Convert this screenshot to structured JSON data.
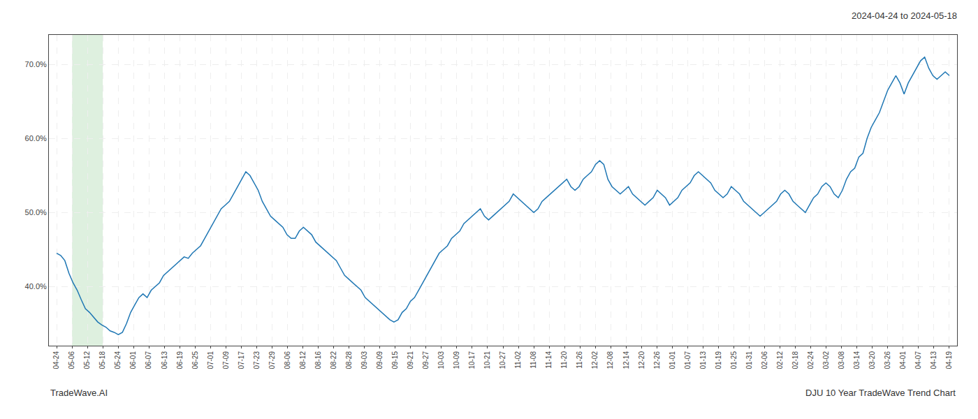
{
  "chart_data": {
    "type": "line",
    "title": "2024-04-24 to 2024-05-18",
    "annotations": [
      "TradeWave.AI",
      "DJU 10 Year TradeWave Trend Chart"
    ],
    "color": "#1f77b4",
    "grid": true,
    "highlight": {
      "x": [
        1,
        3
      ],
      "color": "#c8e6c9"
    },
    "xlim": [
      -0.5,
      58.5
    ],
    "xticks": [
      {
        "value": 0,
        "label": "04-24"
      },
      {
        "value": 1,
        "label": "05-06"
      },
      {
        "value": 2,
        "label": "05-12"
      },
      {
        "value": 3,
        "label": "05-18"
      },
      {
        "value": 4,
        "label": "05-24"
      },
      {
        "value": 5,
        "label": "06-01"
      },
      {
        "value": 6,
        "label": "06-07"
      },
      {
        "value": 7,
        "label": "06-13"
      },
      {
        "value": 8,
        "label": "06-19"
      },
      {
        "value": 9,
        "label": "06-25"
      },
      {
        "value": 10,
        "label": "07-01"
      },
      {
        "value": 11,
        "label": "07-09"
      },
      {
        "value": 12,
        "label": "07-17"
      },
      {
        "value": 13,
        "label": "07-23"
      },
      {
        "value": 14,
        "label": "07-29"
      },
      {
        "value": 15,
        "label": "08-06"
      },
      {
        "value": 16,
        "label": "08-12"
      },
      {
        "value": 17,
        "label": "08-16"
      },
      {
        "value": 18,
        "label": "08-22"
      },
      {
        "value": 19,
        "label": "08-28"
      },
      {
        "value": 20,
        "label": "09-03"
      },
      {
        "value": 21,
        "label": "09-09"
      },
      {
        "value": 22,
        "label": "09-15"
      },
      {
        "value": 23,
        "label": "09-21"
      },
      {
        "value": 24,
        "label": "09-27"
      },
      {
        "value": 25,
        "label": "10-03"
      },
      {
        "value": 26,
        "label": "10-09"
      },
      {
        "value": 27,
        "label": "10-17"
      },
      {
        "value": 28,
        "label": "10-21"
      },
      {
        "value": 29,
        "label": "10-27"
      },
      {
        "value": 30,
        "label": "11-02"
      },
      {
        "value": 31,
        "label": "11-08"
      },
      {
        "value": 32,
        "label": "11-14"
      },
      {
        "value": 33,
        "label": "11-20"
      },
      {
        "value": 34,
        "label": "11-26"
      },
      {
        "value": 35,
        "label": "12-02"
      },
      {
        "value": 36,
        "label": "12-08"
      },
      {
        "value": 37,
        "label": "12-14"
      },
      {
        "value": 38,
        "label": "12-20"
      },
      {
        "value": 39,
        "label": "12-26"
      },
      {
        "value": 40,
        "label": "01-01"
      },
      {
        "value": 41,
        "label": "01-07"
      },
      {
        "value": 42,
        "label": "01-13"
      },
      {
        "value": 43,
        "label": "01-19"
      },
      {
        "value": 44,
        "label": "01-25"
      },
      {
        "value": 45,
        "label": "01-31"
      },
      {
        "value": 46,
        "label": "02-06"
      },
      {
        "value": 47,
        "label": "02-12"
      },
      {
        "value": 48,
        "label": "02-18"
      },
      {
        "value": 49,
        "label": "02-24"
      },
      {
        "value": 50,
        "label": "03-02"
      },
      {
        "value": 51,
        "label": "03-08"
      },
      {
        "value": 52,
        "label": "03-14"
      },
      {
        "value": 53,
        "label": "03-20"
      },
      {
        "value": 54,
        "label": "03-26"
      },
      {
        "value": 55,
        "label": "04-01"
      },
      {
        "value": 56,
        "label": "04-07"
      },
      {
        "value": 57,
        "label": "04-13"
      },
      {
        "value": 58,
        "label": "04-19"
      }
    ],
    "ylim": [
      32,
      74
    ],
    "yticks": [
      {
        "value": 40.0,
        "label": "40.0%"
      },
      {
        "value": 50.0,
        "label": "50.0%"
      },
      {
        "value": 60.0,
        "label": "60.0%"
      },
      {
        "value": 70.0,
        "label": "70.0%"
      }
    ],
    "x": [
      0,
      0.2673,
      0.5346,
      0.8018,
      1.0691,
      1.3364,
      1.6037,
      1.871,
      2.1382,
      2.4055,
      2.6728,
      2.9401,
      3.2074,
      3.4747,
      3.7419,
      4.0092,
      4.2765,
      4.5438,
      4.8111,
      5.0783,
      5.3456,
      5.6129,
      5.8802,
      6.1475,
      6.4147,
      6.682,
      6.9493,
      7.2166,
      7.4839,
      7.7512,
      8.0184,
      8.2857,
      8.553,
      8.8203,
      9.0876,
      9.3548,
      9.6221,
      9.8894,
      10.1567,
      10.424,
      10.6912,
      10.9585,
      11.2258,
      11.4931,
      11.7604,
      12.0276,
      12.2949,
      12.5622,
      12.8295,
      13.0968,
      13.3641,
      13.6313,
      13.8986,
      14.1659,
      14.4332,
      14.7005,
      14.9677,
      15.235,
      15.5023,
      15.7696,
      16.0369,
      16.3041,
      16.5714,
      16.8387,
      17.106,
      17.3733,
      17.6406,
      17.9078,
      18.1751,
      18.4424,
      18.7097,
      18.977,
      19.2442,
      19.5115,
      19.7788,
      20.0461,
      20.3134,
      20.5806,
      20.8479,
      21.1152,
      21.3825,
      21.6498,
      21.9171,
      22.1843,
      22.4516,
      22.7189,
      22.9862,
      23.2535,
      23.5207,
      23.788,
      24.0553,
      24.3226,
      24.5899,
      24.8571,
      25.1244,
      25.3917,
      25.659,
      25.9263,
      26.1935,
      26.4608,
      26.7281,
      26.9954,
      27.2627,
      27.53,
      27.7972,
      28.0645,
      28.3318,
      28.5991,
      28.8664,
      29.1336,
      29.4009,
      29.6682,
      29.9355,
      30.2028,
      30.47,
      30.7373,
      31.0046,
      31.2719,
      31.5392,
      31.8065,
      32.0737,
      32.341,
      32.6083,
      32.8756,
      33.1429,
      33.4101,
      33.6774,
      33.9447,
      34.212,
      34.4793,
      34.7465,
      35.0138,
      35.2811,
      35.5484,
      35.8157,
      36.0829,
      36.3502,
      36.6175,
      36.8848,
      37.1521,
      37.4194,
      37.6866,
      37.9539,
      38.2212,
      38.4885,
      38.7558,
      39.023,
      39.2903,
      39.5576,
      39.8249,
      40.0922,
      40.3594,
      40.6267,
      40.894,
      41.1613,
      41.4286,
      41.6959,
      41.9631,
      42.2304,
      42.4977,
      42.765,
      43.0323,
      43.2995,
      43.5668,
      43.8341,
      44.1014,
      44.3687,
      44.6359,
      44.9032,
      45.1705,
      45.4378,
      45.7051,
      45.9724,
      46.2396,
      46.5069,
      46.7742,
      47.0415,
      47.3088,
      47.576,
      47.8433,
      48.1106,
      48.3779,
      48.6452,
      48.9124,
      49.1797,
      49.447,
      49.7143,
      49.9816,
      50.2488,
      50.5161,
      50.7834,
      51.0507,
      51.318,
      51.5853,
      51.8525,
      52.1198,
      52.3871,
      52.6544,
      52.9217,
      53.1889,
      53.4562,
      53.7235,
      53.9908,
      54.2581,
      54.5253,
      54.7926,
      55.0599,
      55.3272,
      55.5945,
      55.8618,
      56.129,
      56.3963,
      56.6636,
      56.9309,
      57.1982,
      57.4654,
      57.7327,
      58
    ],
    "values": [
      44.5,
      44.2,
      43.5,
      41.8,
      40.5,
      39.5,
      38.2,
      37.0,
      36.5,
      35.8,
      35.2,
      34.8,
      34.5,
      34.0,
      33.8,
      33.5,
      33.8,
      35.0,
      36.5,
      37.5,
      38.5,
      39.0,
      38.5,
      39.5,
      40.0,
      40.5,
      41.5,
      42.0,
      42.5,
      43.0,
      43.5,
      44.0,
      43.8,
      44.5,
      45.0,
      45.5,
      46.5,
      47.5,
      48.5,
      49.5,
      50.5,
      51.0,
      51.5,
      52.5,
      53.5,
      54.5,
      55.5,
      55.0,
      54.0,
      53.0,
      51.5,
      50.5,
      49.5,
      49.0,
      48.5,
      48.0,
      47.0,
      46.5,
      46.5,
      47.5,
      48.0,
      47.5,
      47.0,
      46.0,
      45.5,
      45.0,
      44.5,
      44.0,
      43.5,
      42.5,
      41.5,
      41.0,
      40.5,
      40.0,
      39.5,
      38.5,
      38.0,
      37.5,
      37.0,
      36.5,
      36.0,
      35.5,
      35.2,
      35.5,
      36.5,
      37.0,
      38.0,
      38.5,
      39.5,
      40.5,
      41.5,
      42.5,
      43.5,
      44.5,
      45.0,
      45.5,
      46.5,
      47.0,
      47.5,
      48.5,
      49.0,
      49.5,
      50.0,
      50.5,
      49.5,
      49.0,
      49.5,
      50.0,
      50.5,
      51.0,
      51.5,
      52.5,
      52.0,
      51.5,
      51.0,
      50.5,
      50.0,
      50.5,
      51.5,
      52.0,
      52.5,
      53.0,
      53.5,
      54.0,
      54.5,
      53.5,
      53.0,
      53.5,
      54.5,
      55.0,
      55.5,
      56.5,
      57.0,
      56.5,
      54.5,
      53.5,
      53.0,
      52.5,
      53.0,
      53.5,
      52.5,
      52.0,
      51.5,
      51.0,
      51.5,
      52.0,
      53.0,
      52.5,
      52.0,
      51.0,
      51.5,
      52.0,
      53.0,
      53.5,
      54.0,
      55.0,
      55.5,
      55.0,
      54.5,
      54.0,
      53.0,
      52.5,
      52.0,
      52.5,
      53.5,
      53.0,
      52.5,
      51.5,
      51.0,
      50.5,
      50.0,
      49.5,
      50.0,
      50.5,
      51.0,
      51.5,
      52.5,
      53.0,
      52.5,
      51.5,
      51.0,
      50.5,
      50.0,
      51.0,
      52.0,
      52.5,
      53.5,
      54.0,
      53.5,
      52.5,
      52.0,
      53.0,
      54.5,
      55.5,
      56.0,
      57.5,
      58.0,
      60.0,
      61.5,
      62.5,
      63.5,
      65.0,
      66.5,
      67.5,
      68.5,
      67.5,
      66.0,
      67.5,
      68.5,
      69.5,
      70.5,
      71.0,
      69.5,
      68.5,
      68.0,
      68.5,
      69.0,
      68.5
    ]
  }
}
